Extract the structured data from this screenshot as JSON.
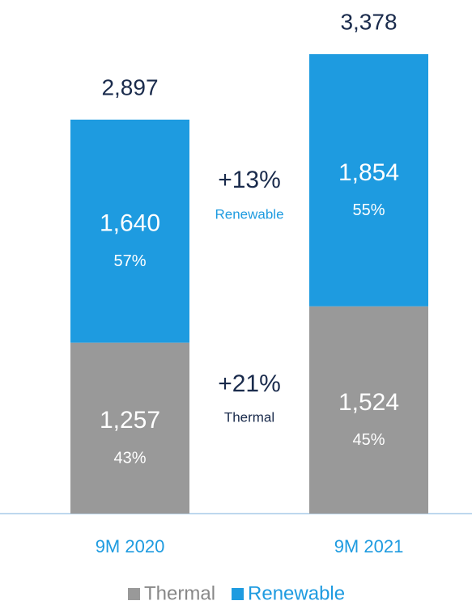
{
  "chart_data": {
    "type": "stacked_bar",
    "categories": [
      "9M 2020",
      "9M 2021"
    ],
    "series": [
      {
        "name": "Thermal",
        "color": "#999999",
        "values": [
          1257,
          1524
        ],
        "value_labels": [
          "1,257",
          "1,524"
        ],
        "shares": [
          43,
          45
        ],
        "share_labels": [
          "43%",
          "45%"
        ]
      },
      {
        "name": "Renewable",
        "color": "#1e9be0",
        "values": [
          1640,
          1854
        ],
        "value_labels": [
          "1,640",
          "1,854"
        ],
        "shares": [
          57,
          55
        ],
        "share_labels": [
          "57%",
          "55%"
        ]
      }
    ],
    "totals": [
      2897,
      3378
    ],
    "total_labels": [
      "2,897",
      "3,378"
    ],
    "annotations": [
      {
        "text": "+13%",
        "label": "Renewable"
      },
      {
        "text": "+21%",
        "label": "Thermal"
      }
    ],
    "legend": "bottom"
  }
}
